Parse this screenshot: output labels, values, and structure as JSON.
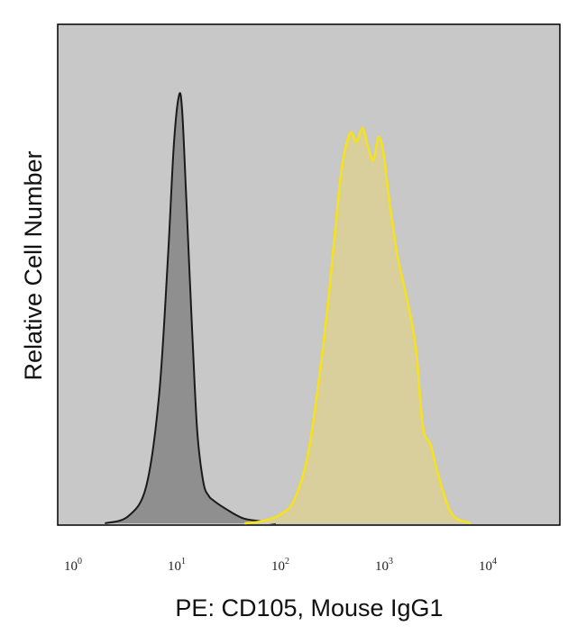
{
  "chart_data": {
    "type": "area",
    "title": "",
    "xlabel": "PE: CD105, Mouse IgG1",
    "ylabel": "Relative Cell Number",
    "xscale": "log",
    "xlim": [
      0.6,
      60000
    ],
    "ylim": [
      0,
      1.0
    ],
    "grid": false,
    "legend": "none",
    "plot_background": "#c8c8c8",
    "x_ticks": [
      {
        "base": "10",
        "exp": "0"
      },
      {
        "base": "10",
        "exp": "1"
      },
      {
        "base": "10",
        "exp": "2"
      },
      {
        "base": "10",
        "exp": "3"
      },
      {
        "base": "10",
        "exp": "4"
      }
    ],
    "series": [
      {
        "stroke": "#1a1a1a",
        "fill": "#8f8f8f",
        "x": [
          1.8,
          3,
          4.5,
          6,
          7.3,
          8.3,
          9.3,
          10,
          11,
          12.5,
          14,
          16,
          18,
          20,
          23,
          27,
          32,
          40,
          55,
          80
        ],
        "y": [
          0.0,
          0.015,
          0.08,
          0.28,
          0.58,
          0.82,
          0.93,
          0.9,
          0.7,
          0.42,
          0.2,
          0.09,
          0.06,
          0.05,
          0.04,
          0.03,
          0.02,
          0.01,
          0.005,
          0.0
        ]
      },
      {
        "stroke": "#f5e11e",
        "fill": "#d8cf9c",
        "x": [
          40,
          60,
          90,
          120,
          160,
          200,
          250,
          300,
          350,
          420,
          480,
          550,
          620,
          700,
          780,
          870,
          1000,
          1200,
          1500,
          1800,
          2100,
          2500,
          3000,
          4000,
          6000
        ],
        "y": [
          0.0,
          0.005,
          0.02,
          0.05,
          0.14,
          0.28,
          0.46,
          0.64,
          0.78,
          0.85,
          0.83,
          0.86,
          0.82,
          0.79,
          0.84,
          0.81,
          0.7,
          0.58,
          0.48,
          0.38,
          0.21,
          0.17,
          0.1,
          0.02,
          0.0
        ]
      }
    ]
  }
}
